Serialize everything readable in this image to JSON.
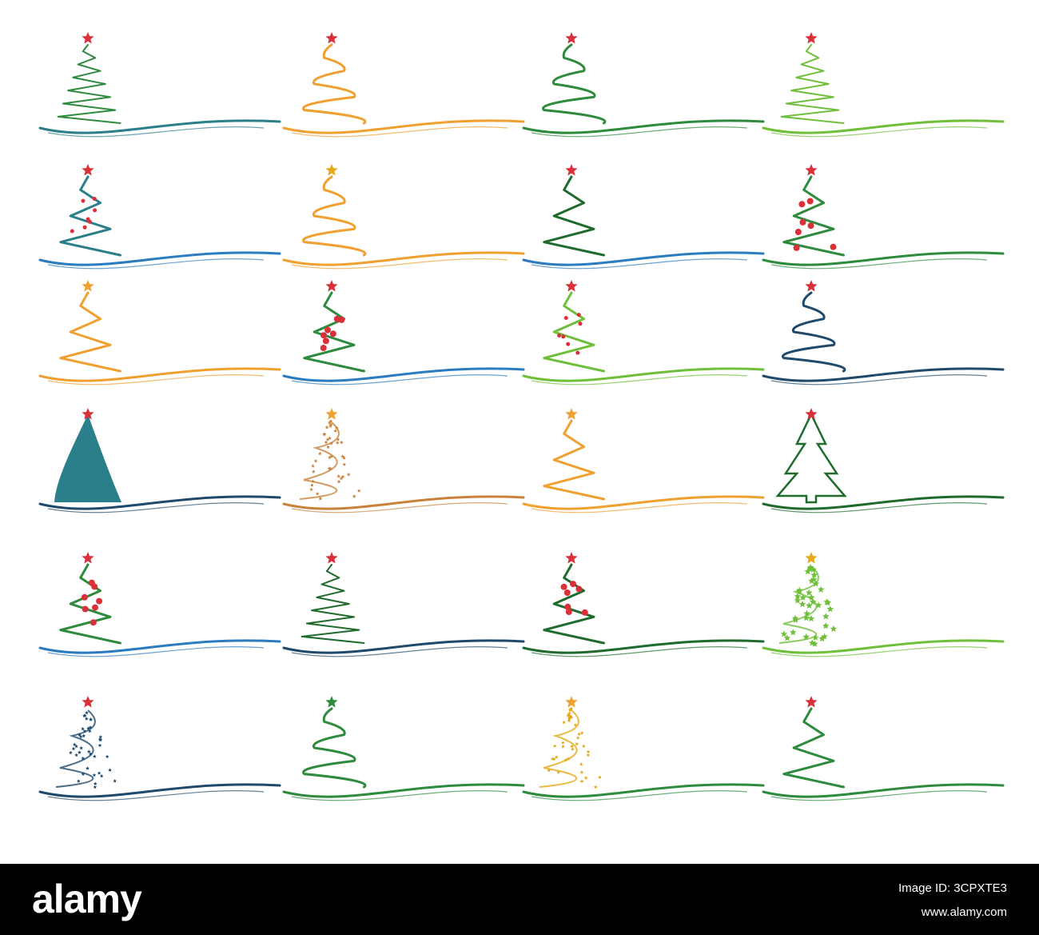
{
  "footer": {
    "brand": "alamy",
    "image_id_line": "Image ID: 3CPXTE3",
    "site": "www.alamy.com"
  },
  "colors": {
    "green": "#2e8a3c",
    "dark_green": "#1f6b2d",
    "light_green": "#6fbf3a",
    "teal": "#2a7f8a",
    "blue": "#2b7bbf",
    "navy": "#1f4a6b",
    "orange": "#f0a030",
    "gold": "#e6a817",
    "red": "#d9303a",
    "copper": "#c8823c"
  },
  "trees": [
    {
      "style": "scribble",
      "tree": "green",
      "wave": "teal",
      "star": "red"
    },
    {
      "style": "swirl",
      "tree": "orange",
      "wave": "orange",
      "star": "red"
    },
    {
      "style": "loop",
      "tree": "green",
      "wave": "green",
      "star": "red"
    },
    {
      "style": "scribble",
      "tree": "light_green",
      "wave": "light_green",
      "star": "red"
    },
    {
      "style": "ribbon",
      "tree": "teal",
      "wave": "blue",
      "star": "red"
    },
    {
      "style": "swirl",
      "tree": "orange",
      "wave": "orange",
      "star": "gold"
    },
    {
      "style": "zigzag",
      "tree": "dark_green",
      "wave": "blue",
      "star": "red"
    },
    {
      "style": "ornament",
      "tree": "green",
      "wave": "green",
      "star": "red"
    },
    {
      "style": "zigzag",
      "tree": "orange",
      "wave": "orange",
      "star": "orange"
    },
    {
      "style": "ornament",
      "tree": "green",
      "wave": "blue",
      "star": "red"
    },
    {
      "style": "ribbon",
      "tree": "light_green",
      "wave": "light_green",
      "star": "red"
    },
    {
      "style": "loop",
      "tree": "navy",
      "wave": "navy",
      "star": "red"
    },
    {
      "style": "solid",
      "tree": "teal",
      "wave": "navy",
      "star": "red"
    },
    {
      "style": "sparkle",
      "tree": "copper",
      "wave": "copper",
      "star": "orange"
    },
    {
      "style": "zigzag",
      "tree": "orange",
      "wave": "orange",
      "star": "orange"
    },
    {
      "style": "outline",
      "tree": "dark_green",
      "wave": "dark_green",
      "star": "red"
    },
    {
      "style": "tiered",
      "tree": "green",
      "wave": "blue",
      "star": "red"
    },
    {
      "style": "scribble",
      "tree": "dark_green",
      "wave": "navy",
      "star": "red"
    },
    {
      "style": "ornament",
      "tree": "dark_green",
      "wave": "dark_green",
      "star": "red"
    },
    {
      "style": "stars",
      "tree": "light_green",
      "wave": "light_green",
      "star": "gold"
    },
    {
      "style": "sparkle",
      "tree": "navy",
      "wave": "navy",
      "star": "red"
    },
    {
      "style": "curly",
      "tree": "green",
      "wave": "green",
      "star": "green"
    },
    {
      "style": "sparkle",
      "tree": "gold",
      "wave": "green",
      "star": "orange"
    },
    {
      "style": "zigzag",
      "tree": "green",
      "wave": "green",
      "star": "red"
    }
  ]
}
